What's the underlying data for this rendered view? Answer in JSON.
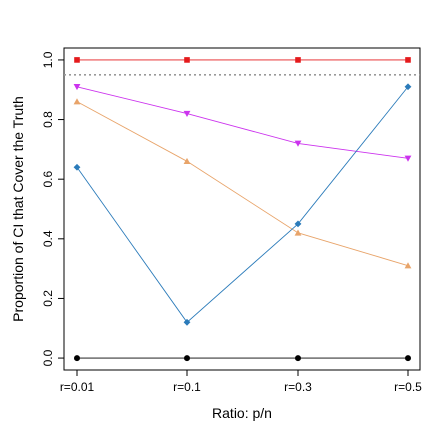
{
  "chart_data": {
    "type": "line",
    "title": "",
    "xlabel": "Ratio: p/n",
    "ylabel": "Proportion of CI that Cover the Truth",
    "categories": [
      "r=0.01",
      "r=0.1",
      "r=0.3",
      "r=0.5"
    ],
    "ylim": [
      -0.04,
      1.04
    ],
    "yticks": [
      0.0,
      0.2,
      0.4,
      0.6,
      0.8,
      1.0
    ],
    "ytick_labels": [
      "0.0",
      "0.2",
      "0.4",
      "0.6",
      "0.8",
      "1.0"
    ],
    "reference_line": {
      "y": 0.95,
      "style": "dotted",
      "color": "#999999"
    },
    "grid": false,
    "series": [
      {
        "marker": "square",
        "color": "#e41a1c",
        "values": [
          1.0,
          1.0,
          1.0,
          1.0
        ]
      },
      {
        "marker": "triangle-down",
        "color": "#cc33ee",
        "values": [
          0.91,
          0.82,
          0.72,
          0.67
        ]
      },
      {
        "marker": "triangle-up",
        "color": "#e8a46a",
        "values": [
          0.86,
          0.66,
          0.42,
          0.31
        ]
      },
      {
        "marker": "diamond",
        "color": "#2b7bba",
        "values": [
          0.64,
          0.12,
          0.45,
          0.91
        ]
      },
      {
        "marker": "circle",
        "color": "#000000",
        "values": [
          0.0,
          0.0,
          0.0,
          0.0
        ]
      }
    ]
  }
}
